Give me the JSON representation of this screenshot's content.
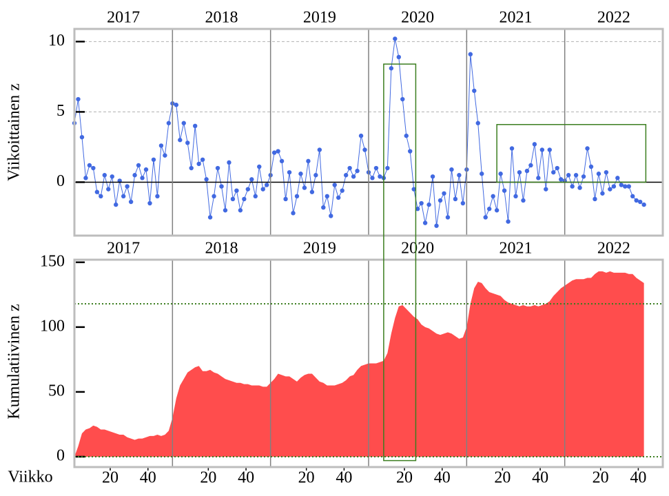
{
  "chart_data": [
    {
      "type": "line",
      "ylabel": "Viikoittainen z",
      "color": "#4169e1",
      "year_labels": [
        "2017",
        "2018",
        "2019",
        "2020",
        "2021",
        "2022"
      ],
      "year_boundaries": [
        52,
        104,
        156,
        208,
        260
      ],
      "xlim": [
        0,
        312
      ],
      "ylim": [
        -3.8,
        10.9
      ],
      "yticks": [
        0,
        5,
        10
      ],
      "grid_color": "#b0b0b0",
      "zero_line": 0,
      "boxes": [
        {
          "xlim": [
            224,
            303
          ],
          "ylim": [
            0,
            4.1
          ]
        }
      ],
      "span": {
        "xlim": [
          164,
          181
        ],
        "top": 8.4
      },
      "box_color": "#3a7d1e",
      "x": [
        0,
        2,
        4,
        6,
        8,
        10,
        12,
        14,
        16,
        18,
        20,
        22,
        24,
        26,
        28,
        30,
        32,
        34,
        36,
        38,
        40,
        42,
        44,
        46,
        48,
        50,
        52,
        54,
        56,
        58,
        60,
        62,
        64,
        66,
        68,
        70,
        72,
        74,
        76,
        78,
        80,
        82,
        84,
        86,
        88,
        90,
        92,
        94,
        96,
        98,
        100,
        102,
        104,
        106,
        108,
        110,
        112,
        114,
        116,
        118,
        120,
        122,
        124,
        126,
        128,
        130,
        132,
        134,
        136,
        138,
        140,
        142,
        144,
        146,
        148,
        150,
        152,
        154,
        156,
        158,
        160,
        162,
        164,
        166,
        168,
        170,
        172,
        174,
        176,
        178,
        180,
        182,
        184,
        186,
        188,
        190,
        192,
        194,
        196,
        198,
        200,
        202,
        204,
        206,
        208,
        210,
        212,
        214,
        216,
        218,
        220,
        222,
        224,
        226,
        228,
        230,
        232,
        234,
        236,
        238,
        240,
        242,
        244,
        246,
        248,
        250,
        252,
        254,
        256,
        258,
        260,
        262,
        264,
        266,
        268,
        270,
        272,
        274,
        276,
        278,
        280,
        282,
        284,
        286,
        288,
        290,
        292,
        294,
        296,
        298,
        300,
        302
      ],
      "values": [
        4.2,
        5.9,
        3.2,
        0.3,
        1.2,
        1.0,
        -0.7,
        -1.0,
        0.5,
        -0.5,
        0.4,
        -1.6,
        0.1,
        -1.0,
        -0.3,
        -1.4,
        0.5,
        1.2,
        0.3,
        0.9,
        -1.5,
        1.6,
        -1.0,
        2.6,
        1.9,
        4.2,
        5.6,
        5.5,
        3.0,
        4.2,
        2.8,
        1.0,
        4.0,
        1.3,
        1.6,
        0.2,
        -2.5,
        -1.0,
        1.0,
        -0.3,
        -2.0,
        1.4,
        -1.2,
        -0.6,
        -2.0,
        -1.2,
        -0.5,
        0.2,
        -1.0,
        1.1,
        -0.5,
        -0.2,
        0.5,
        2.1,
        2.2,
        1.5,
        -1.2,
        0.7,
        -2.2,
        -1.0,
        0.6,
        -0.4,
        1.5,
        -0.7,
        0.5,
        2.3,
        -1.8,
        -1.0,
        -2.4,
        -0.2,
        -1.1,
        -0.6,
        0.5,
        1.0,
        0.4,
        0.8,
        3.3,
        2.3,
        0.7,
        0.3,
        1.0,
        0.4,
        0.3,
        1.0,
        8.1,
        10.2,
        8.9,
        5.9,
        3.3,
        2.2,
        -0.5,
        -1.9,
        -1.5,
        -2.9,
        -1.6,
        0.4,
        -3.1,
        -1.3,
        -0.8,
        -2.5,
        0.9,
        -1.2,
        0.5,
        -1.5,
        0.9,
        9.1,
        6.5,
        4.2,
        0.6,
        -2.5,
        -1.9,
        -1.0,
        -2.0,
        0.6,
        -0.6,
        -2.8,
        2.4,
        -1.0,
        0.7,
        -1.3,
        0.8,
        1.2,
        2.7,
        0.3,
        2.3,
        -0.5,
        2.3,
        0.7,
        1.0,
        0.2,
        0.1,
        0.5,
        -0.3,
        0.5,
        -0.4,
        0.4,
        2.4,
        1.1,
        -1.2,
        0.6,
        -0.8,
        0.7,
        -0.5,
        -0.3,
        0.3,
        -0.2,
        -0.3,
        -0.3,
        -1.0,
        -1.3,
        -1.4,
        -1.6
      ]
    },
    {
      "type": "area",
      "ylabel": "Kumulatiivinen z",
      "xlabel": "Viikko",
      "color": "#ff4d4d",
      "xlim": [
        0,
        312
      ],
      "ylim": [
        -8,
        152
      ],
      "yticks": [
        0,
        50,
        100,
        150
      ],
      "xticks": [
        {
          "value": 19,
          "label": "20"
        },
        {
          "value": 39,
          "label": "40"
        },
        {
          "value": 71,
          "label": "20"
        },
        {
          "value": 91,
          "label": "40"
        },
        {
          "value": 123,
          "label": "20"
        },
        {
          "value": 143,
          "label": "40"
        },
        {
          "value": 175,
          "label": "20"
        },
        {
          "value": 195,
          "label": "40"
        },
        {
          "value": 227,
          "label": "20"
        },
        {
          "value": 247,
          "label": "40"
        },
        {
          "value": 279,
          "label": "20"
        },
        {
          "value": 299,
          "label": "40"
        }
      ],
      "hlines": [
        118,
        0
      ],
      "hline_color": "#3a7d1e",
      "span_bottom": -3,
      "x": [
        0,
        2,
        4,
        6,
        8,
        10,
        12,
        14,
        16,
        18,
        20,
        22,
        24,
        26,
        28,
        30,
        32,
        34,
        36,
        38,
        40,
        42,
        44,
        46,
        48,
        50,
        52,
        54,
        56,
        58,
        60,
        62,
        64,
        66,
        68,
        70,
        72,
        74,
        76,
        78,
        80,
        82,
        84,
        86,
        88,
        90,
        92,
        94,
        96,
        98,
        100,
        102,
        104,
        106,
        108,
        110,
        112,
        114,
        116,
        118,
        120,
        122,
        124,
        126,
        128,
        130,
        132,
        134,
        136,
        138,
        140,
        142,
        144,
        146,
        148,
        150,
        152,
        154,
        156,
        158,
        160,
        162,
        164,
        166,
        168,
        170,
        172,
        174,
        176,
        178,
        180,
        182,
        184,
        186,
        188,
        190,
        192,
        194,
        196,
        198,
        200,
        202,
        204,
        206,
        208,
        210,
        212,
        214,
        216,
        218,
        220,
        222,
        224,
        226,
        228,
        230,
        232,
        234,
        236,
        238,
        240,
        242,
        244,
        246,
        248,
        250,
        252,
        254,
        256,
        258,
        260,
        262,
        264,
        266,
        268,
        270,
        272,
        274,
        276,
        278,
        280,
        282,
        284,
        286,
        288,
        290,
        292,
        294,
        296,
        298,
        300,
        302
      ],
      "values": [
        0,
        8,
        18,
        21,
        22,
        24,
        23,
        21,
        21,
        20,
        19,
        18,
        17,
        17,
        15,
        14,
        13,
        14,
        14,
        15,
        16,
        16,
        17,
        16,
        17,
        20,
        30,
        45,
        55,
        60,
        65,
        67,
        69,
        70,
        66,
        66,
        67,
        65,
        64,
        62,
        60,
        59,
        58,
        57,
        57,
        56,
        56,
        55,
        55,
        55,
        54,
        54,
        57,
        60,
        64,
        63,
        62,
        62,
        60,
        58,
        61,
        63,
        64,
        64,
        61,
        58,
        57,
        55,
        55,
        55,
        56,
        57,
        59,
        62,
        63,
        67,
        70,
        71,
        72,
        72,
        72,
        73,
        74,
        80,
        95,
        107,
        116,
        117,
        114,
        111,
        108,
        106,
        102,
        100,
        99,
        97,
        95,
        94,
        95,
        96,
        95,
        93,
        91,
        92,
        100,
        118,
        130,
        135,
        134,
        130,
        127,
        126,
        125,
        124,
        121,
        119,
        118,
        117,
        116,
        117,
        116,
        116,
        117,
        116,
        117,
        118,
        120,
        124,
        127,
        130,
        132,
        134,
        136,
        137,
        137,
        137,
        138,
        138,
        141,
        143,
        143,
        142,
        143,
        142,
        142,
        142,
        142,
        141,
        141,
        138,
        136,
        134
      ]
    }
  ]
}
